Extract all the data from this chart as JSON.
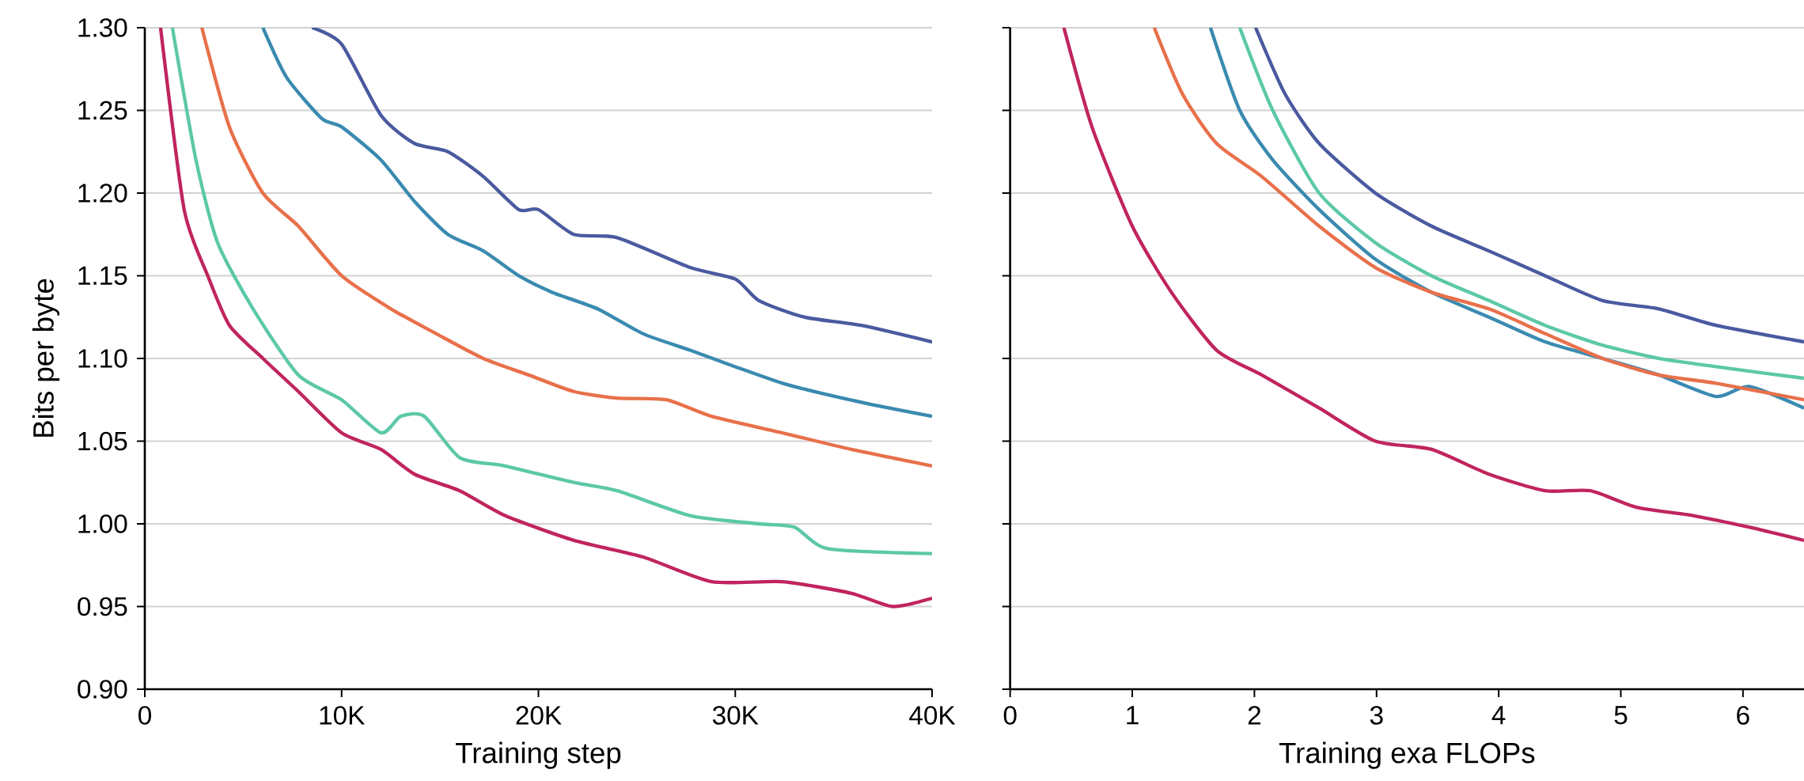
{
  "chart_data": [
    {
      "type": "line",
      "xlabel": "Training step",
      "ylabel": "Bits per byte",
      "xlim": [
        0,
        40000
      ],
      "ylim": [
        0.9,
        1.3
      ],
      "xticks": [
        0,
        {
          "value": 10000,
          "label": "10K"
        },
        {
          "value": 20000,
          "label": "20K"
        },
        {
          "value": 30000,
          "label": "30K"
        },
        {
          "value": 40000,
          "label": "40K"
        }
      ],
      "yticks": [
        {
          "value": 0.9,
          "label": "0.90"
        },
        {
          "value": 0.95,
          "label": "0.95"
        },
        {
          "value": 1.0,
          "label": "1.00"
        },
        {
          "value": 1.05,
          "label": "1.05"
        },
        {
          "value": 1.1,
          "label": "1.10"
        },
        {
          "value": 1.15,
          "label": "1.15"
        },
        {
          "value": 1.2,
          "label": "1.20"
        },
        {
          "value": 1.25,
          "label": "1.25"
        },
        {
          "value": 1.3,
          "label": "1.30"
        }
      ],
      "grid": "y",
      "series": [
        {
          "color": "#4a5aa0",
          "x": [
            8500,
            10000,
            12000,
            13700,
            15400,
            17200,
            19000,
            20000,
            21800,
            24000,
            27700,
            30000,
            31200,
            33500,
            36400,
            40000
          ],
          "values": [
            1.3,
            1.29,
            1.247,
            1.23,
            1.225,
            1.21,
            1.19,
            1.19,
            1.175,
            1.173,
            1.155,
            1.148,
            1.135,
            1.125,
            1.12,
            1.11
          ]
        },
        {
          "color": "#3a8ab0",
          "x": [
            6000,
            7200,
            9000,
            10000,
            12000,
            13700,
            15400,
            17200,
            19000,
            20700,
            23000,
            25300,
            27700,
            30000,
            32400,
            34700,
            37000,
            40000
          ],
          "values": [
            1.3,
            1.27,
            1.245,
            1.24,
            1.22,
            1.195,
            1.175,
            1.165,
            1.15,
            1.14,
            1.13,
            1.115,
            1.105,
            1.095,
            1.085,
            1.078,
            1.072,
            1.065
          ]
        },
        {
          "color": "#e8704a",
          "x": [
            2900,
            4300,
            6000,
            7800,
            10000,
            12500,
            14800,
            17200,
            19500,
            21800,
            24000,
            26500,
            28800,
            32400,
            35900,
            40000
          ],
          "values": [
            1.3,
            1.24,
            1.2,
            1.18,
            1.15,
            1.13,
            1.115,
            1.1,
            1.09,
            1.08,
            1.076,
            1.075,
            1.065,
            1.055,
            1.045,
            1.035
          ]
        },
        {
          "color": "#5cc8a8",
          "x": [
            1400,
            2600,
            3700,
            5500,
            7800,
            10000,
            12000,
            13000,
            14200,
            16000,
            18300,
            21800,
            24000,
            27700,
            31200,
            33000,
            34700,
            40000
          ],
          "values": [
            1.3,
            1.22,
            1.17,
            1.13,
            1.09,
            1.075,
            1.055,
            1.065,
            1.065,
            1.04,
            1.035,
            1.025,
            1.02,
            1.005,
            1.0,
            0.998,
            0.985,
            0.982
          ]
        },
        {
          "color": "#c0245e",
          "x": [
            800,
            2000,
            3200,
            4300,
            6000,
            7800,
            10000,
            12000,
            13700,
            16000,
            18300,
            21800,
            25300,
            28800,
            32400,
            35900,
            38000,
            40000
          ],
          "values": [
            1.3,
            1.19,
            1.15,
            1.12,
            1.1,
            1.08,
            1.055,
            1.045,
            1.03,
            1.02,
            1.005,
            0.99,
            0.98,
            0.965,
            0.965,
            0.958,
            0.95,
            0.955
          ]
        }
      ]
    },
    {
      "type": "line",
      "xlabel": "Training exa FLOPs",
      "xlim": [
        0,
        6.5
      ],
      "ylim": [
        0.9,
        1.3
      ],
      "xticks": [
        0,
        1,
        2,
        3,
        4,
        5,
        6
      ],
      "yticks": [
        {
          "value": 0.9,
          "label": null
        },
        {
          "value": 0.95,
          "label": null
        },
        {
          "value": 1.0,
          "label": null
        },
        {
          "value": 1.05,
          "label": null
        },
        {
          "value": 1.1,
          "label": null
        },
        {
          "value": 1.15,
          "label": null
        },
        {
          "value": 1.2,
          "label": null
        },
        {
          "value": 1.25,
          "label": null
        },
        {
          "value": 1.3,
          "label": null
        }
      ],
      "grid": "y",
      "tick_labels": "x",
      "series": [
        {
          "color": "#4a5aa0",
          "x": [
            2.01,
            2.25,
            2.53,
            2.99,
            3.45,
            3.92,
            4.38,
            4.85,
            5.31,
            5.78,
            6.5
          ],
          "values": [
            1.3,
            1.26,
            1.23,
            1.2,
            1.18,
            1.165,
            1.15,
            1.135,
            1.13,
            1.12,
            1.11
          ]
        },
        {
          "color": "#3a8ab0",
          "x": [
            1.64,
            1.88,
            2.15,
            2.53,
            2.99,
            3.45,
            3.92,
            4.38,
            4.85,
            5.31,
            5.78,
            6.05,
            6.5
          ],
          "values": [
            1.3,
            1.25,
            1.22,
            1.19,
            1.16,
            1.14,
            1.125,
            1.11,
            1.1,
            1.09,
            1.077,
            1.083,
            1.07
          ]
        },
        {
          "color": "#e8704a",
          "x": [
            1.18,
            1.41,
            1.69,
            2.06,
            2.53,
            2.99,
            3.45,
            3.92,
            4.38,
            4.85,
            5.31,
            5.78,
            6.5
          ],
          "values": [
            1.3,
            1.26,
            1.23,
            1.21,
            1.18,
            1.155,
            1.14,
            1.13,
            1.115,
            1.1,
            1.09,
            1.085,
            1.075
          ]
        },
        {
          "color": "#5cc8a8",
          "x": [
            1.88,
            2.15,
            2.53,
            2.99,
            3.45,
            3.92,
            4.38,
            4.85,
            5.31,
            5.78,
            6.5
          ],
          "values": [
            1.3,
            1.25,
            1.2,
            1.17,
            1.15,
            1.135,
            1.12,
            1.108,
            1.1,
            1.095,
            1.088
          ]
        },
        {
          "color": "#c0245e",
          "x": [
            0.44,
            0.67,
            1.0,
            1.32,
            1.69,
            2.06,
            2.53,
            2.99,
            3.45,
            3.92,
            4.38,
            4.75,
            5.13,
            5.59,
            6.05,
            6.5
          ],
          "values": [
            1.3,
            1.24,
            1.18,
            1.14,
            1.105,
            1.09,
            1.07,
            1.05,
            1.045,
            1.03,
            1.02,
            1.02,
            1.01,
            1.005,
            0.998,
            0.99
          ]
        }
      ]
    }
  ]
}
